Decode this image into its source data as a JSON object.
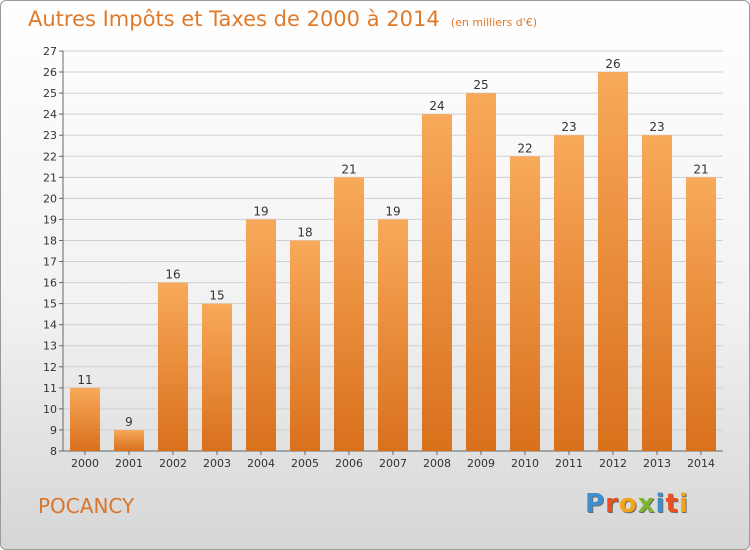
{
  "header": {
    "title": "Autres Impôts et Taxes de 2000 à 2014",
    "unit": "(en milliers d'€)"
  },
  "footer": {
    "commune": "POCANCY",
    "logo_text": "Proxiti",
    "logo_colors": [
      "#3d8fd1",
      "#e8501f",
      "#f2a51b",
      "#7fb52e",
      "#3d8fd1",
      "#e8501f",
      "#f2a51b"
    ]
  },
  "chart_data": {
    "type": "bar",
    "title": "Autres Impôts et Taxes de 2000 à 2014",
    "subtitle": "(en milliers d'€)",
    "xlabel": "",
    "ylabel": "",
    "categories": [
      "2000",
      "2001",
      "2002",
      "2003",
      "2004",
      "2005",
      "2006",
      "2007",
      "2008",
      "2009",
      "2010",
      "2011",
      "2012",
      "2013",
      "2014"
    ],
    "values": [
      11,
      9,
      16,
      15,
      19,
      18,
      21,
      19,
      24,
      25,
      22,
      23,
      26,
      23,
      21
    ],
    "ylim": [
      8,
      27
    ],
    "yticks": [
      8,
      9,
      10,
      11,
      12,
      13,
      14,
      15,
      16,
      17,
      18,
      19,
      20,
      21,
      22,
      23,
      24,
      25,
      26,
      27
    ],
    "grid": true,
    "legend": "none",
    "colors": {
      "bar_top": "#f8a95a",
      "bar_bottom": "#d9701c",
      "grid": "#cfcfcf",
      "axis": "#666666"
    }
  }
}
